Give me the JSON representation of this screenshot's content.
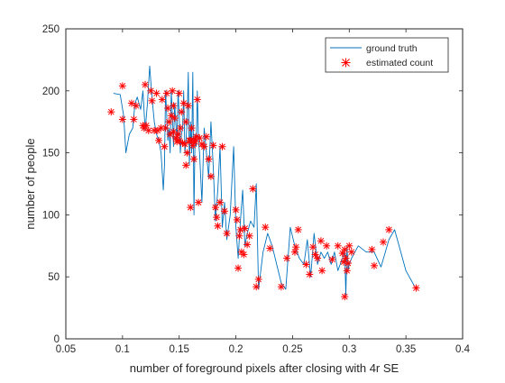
{
  "chart_data": {
    "type": "line",
    "title": "",
    "xlabel": "number of foreground pixels after closing with 4r SE",
    "ylabel": "number of people",
    "xlim": [
      0.05,
      0.4
    ],
    "ylim": [
      0,
      250
    ],
    "x_ticks": [
      0.05,
      0.1,
      0.15,
      0.2,
      0.25,
      0.3,
      0.35,
      0.4
    ],
    "x_tick_labels": [
      "0.05",
      "0.1",
      "0.15",
      "0.2",
      "0.25",
      "0.3",
      "0.35",
      "0.4"
    ],
    "y_ticks": [
      0,
      50,
      100,
      150,
      200,
      250
    ],
    "y_tick_labels": [
      "0",
      "50",
      "100",
      "150",
      "200",
      "250"
    ],
    "grid": false,
    "legend_position": "top-right",
    "colors": {
      "ground_truth": "#0072bd",
      "estimated": "#ff0000",
      "axes": "#262626"
    },
    "series": [
      {
        "name": "ground truth",
        "style": "line",
        "x": [
          0.092,
          0.098,
          0.101,
          0.103,
          0.106,
          0.109,
          0.111,
          0.113,
          0.116,
          0.118,
          0.12,
          0.122,
          0.124,
          0.126,
          0.128,
          0.13,
          0.132,
          0.134,
          0.136,
          0.137,
          0.138,
          0.139,
          0.14,
          0.141,
          0.142,
          0.143,
          0.144,
          0.145,
          0.146,
          0.147,
          0.148,
          0.149,
          0.15,
          0.151,
          0.152,
          0.153,
          0.154,
          0.155,
          0.156,
          0.157,
          0.158,
          0.159,
          0.16,
          0.161,
          0.162,
          0.163,
          0.164,
          0.165,
          0.166,
          0.167,
          0.168,
          0.17,
          0.172,
          0.174,
          0.176,
          0.178,
          0.18,
          0.182,
          0.184,
          0.186,
          0.188,
          0.19,
          0.192,
          0.195,
          0.198,
          0.2,
          0.202,
          0.204,
          0.206,
          0.208,
          0.21,
          0.213,
          0.216,
          0.218,
          0.22,
          0.224,
          0.228,
          0.232,
          0.236,
          0.24,
          0.244,
          0.248,
          0.252,
          0.256,
          0.26,
          0.263,
          0.266,
          0.269,
          0.272,
          0.275,
          0.278,
          0.281,
          0.284,
          0.287,
          0.29,
          0.292,
          0.294,
          0.296,
          0.297,
          0.298,
          0.299,
          0.3,
          0.302,
          0.308,
          0.315,
          0.322,
          0.328,
          0.335,
          0.34,
          0.35,
          0.359
        ],
        "y": [
          198,
          197,
          180,
          150,
          165,
          170,
          190,
          195,
          185,
          200,
          168,
          190,
          220,
          195,
          175,
          165,
          160,
          150,
          120,
          140,
          200,
          180,
          160,
          170,
          150,
          200,
          180,
          155,
          190,
          175,
          160,
          200,
          180,
          150,
          165,
          170,
          200,
          150,
          160,
          175,
          215,
          140,
          175,
          150,
          215,
          100,
          165,
          155,
          200,
          160,
          150,
          110,
          170,
          150,
          130,
          175,
          140,
          95,
          120,
          155,
          90,
          110,
          80,
          100,
          155,
          90,
          65,
          95,
          120,
          75,
          85,
          95,
          90,
          125,
          40,
          70,
          85,
          75,
          60,
          45,
          40,
          90,
          75,
          65,
          60,
          80,
          50,
          85,
          60,
          70,
          65,
          70,
          60,
          70,
          55,
          60,
          65,
          70,
          35,
          75,
          55,
          60,
          65,
          75,
          70,
          70,
          58,
          80,
          88,
          55,
          40
        ]
      },
      {
        "name": "estimated count",
        "style": "marker",
        "x": [
          0.09,
          0.1,
          0.1,
          0.108,
          0.11,
          0.112,
          0.118,
          0.119,
          0.12,
          0.121,
          0.123,
          0.125,
          0.126,
          0.128,
          0.13,
          0.131,
          0.132,
          0.134,
          0.135,
          0.137,
          0.138,
          0.139,
          0.14,
          0.141,
          0.142,
          0.143,
          0.144,
          0.145,
          0.145,
          0.146,
          0.147,
          0.148,
          0.149,
          0.15,
          0.15,
          0.151,
          0.152,
          0.153,
          0.154,
          0.155,
          0.156,
          0.156,
          0.157,
          0.158,
          0.159,
          0.16,
          0.16,
          0.161,
          0.162,
          0.163,
          0.163,
          0.164,
          0.165,
          0.166,
          0.167,
          0.168,
          0.17,
          0.172,
          0.174,
          0.176,
          0.178,
          0.18,
          0.182,
          0.183,
          0.184,
          0.186,
          0.188,
          0.19,
          0.192,
          0.2,
          0.201,
          0.202,
          0.203,
          0.204,
          0.205,
          0.207,
          0.208,
          0.21,
          0.212,
          0.215,
          0.218,
          0.22,
          0.226,
          0.23,
          0.24,
          0.245,
          0.252,
          0.253,
          0.255,
          0.262,
          0.265,
          0.268,
          0.27,
          0.272,
          0.275,
          0.276,
          0.28,
          0.285,
          0.29,
          0.294,
          0.295,
          0.296,
          0.296,
          0.297,
          0.298,
          0.299,
          0.3,
          0.302,
          0.32,
          0.322,
          0.33,
          0.335,
          0.359
        ],
        "y": [
          183,
          204,
          177,
          190,
          177,
          188,
          172,
          170,
          205,
          172,
          168,
          200,
          192,
          168,
          198,
          168,
          160,
          170,
          193,
          155,
          170,
          198,
          186,
          175,
          165,
          180,
          200,
          167,
          188,
          178,
          162,
          159,
          165,
          198,
          160,
          170,
          183,
          158,
          190,
          157,
          175,
          140,
          150,
          188,
          160,
          160,
          106,
          170,
          156,
          145,
          160,
          159,
          163,
          193,
          110,
          162,
          157,
          155,
          163,
          145,
          131,
          156,
          106,
          98,
          91,
          110,
          155,
          103,
          85,
          104,
          96,
          57,
          83,
          88,
          70,
          68,
          89,
          76,
          83,
          121,
          42,
          48,
          90,
          73,
          42,
          65,
          70,
          74,
          88,
          60,
          52,
          74,
          68,
          65,
          79,
          55,
          75,
          64,
          75,
          69,
          62,
          72,
          34,
          65,
          55,
          61,
          75,
          70,
          72,
          59,
          78,
          88,
          41
        ]
      }
    ]
  }
}
